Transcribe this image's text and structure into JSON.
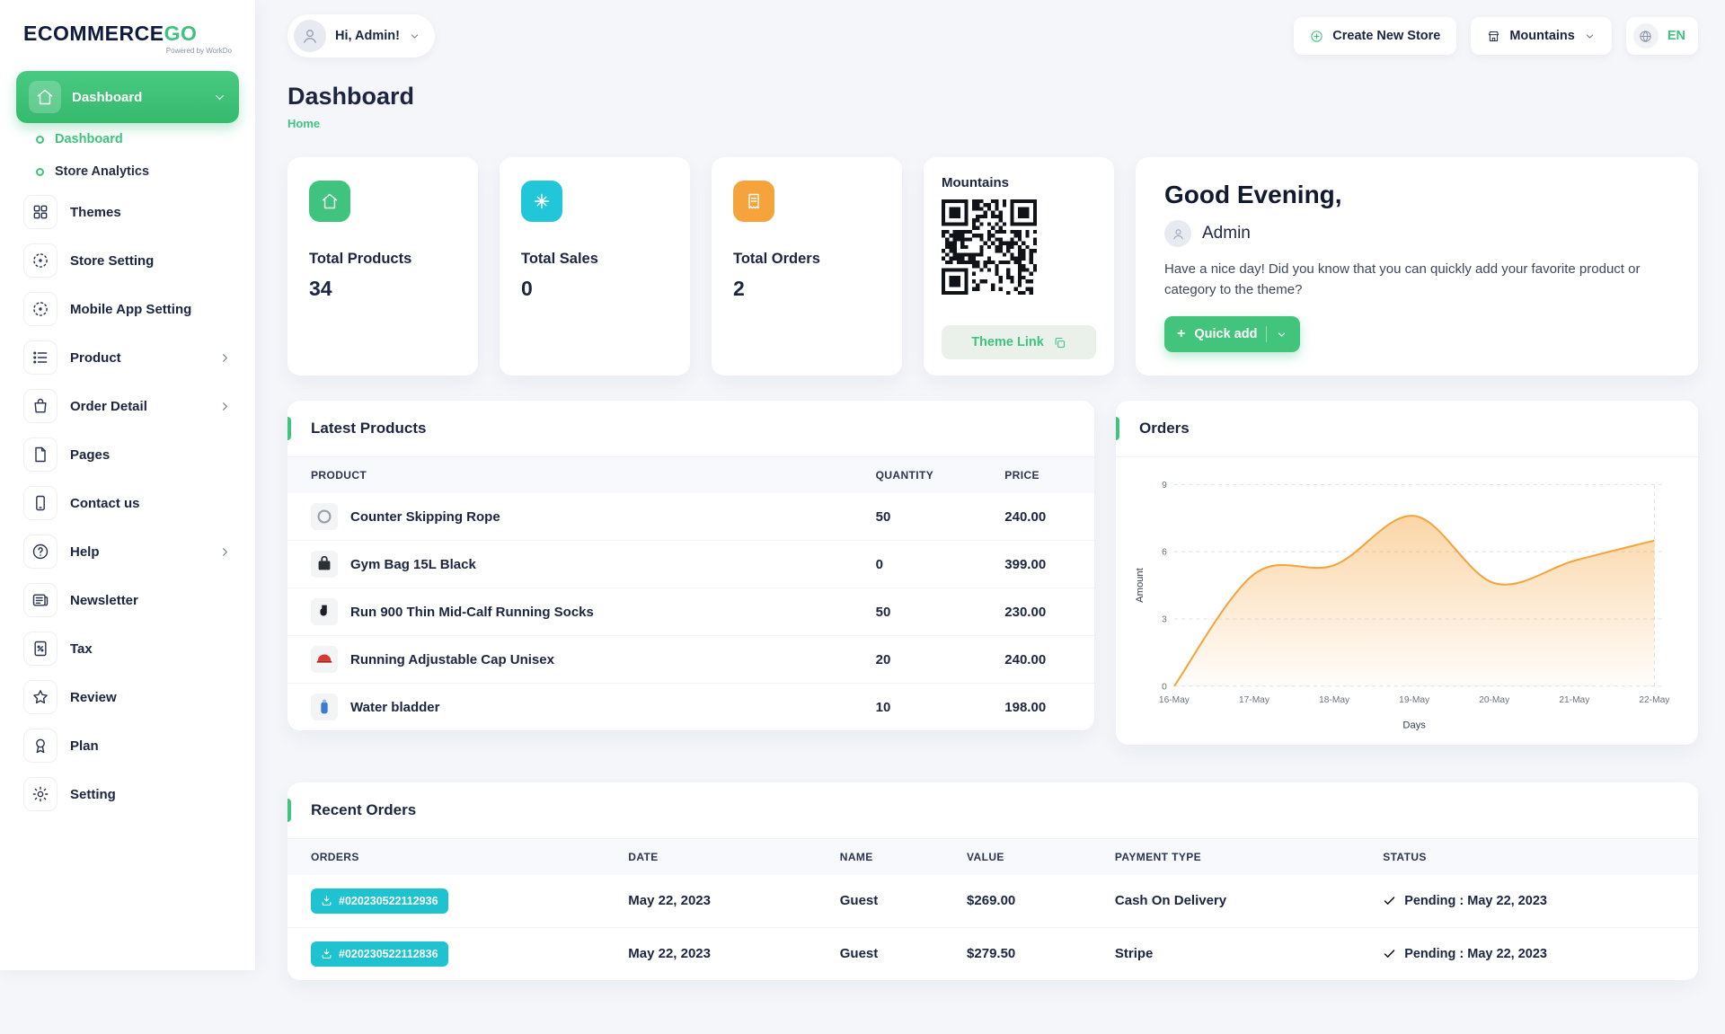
{
  "colors": {
    "accent_green": "#3fc37e",
    "teal": "#1fc3cf",
    "orange": "#f5a43c",
    "navy": "#0e1b3d"
  },
  "brand": {
    "logo_part1": "ECOMMERCE",
    "logo_part2": "GO",
    "tagline": "Powered by WorkDo"
  },
  "header": {
    "greeting": "Hi, Admin!",
    "create_store_label": "Create New Store",
    "create_store_icon": "plus-circle-icon",
    "store_selector_label": "Mountains",
    "store_selector_icon": "shop-icon",
    "language_label": "EN",
    "language_icon": "globe-icon"
  },
  "page": {
    "title": "Dashboard",
    "breadcrumb": "Home"
  },
  "sidebar": {
    "items": [
      {
        "label": "Dashboard",
        "icon": "home",
        "children": [
          {
            "label": "Dashboard"
          },
          {
            "label": "Store Analytics"
          }
        ]
      },
      {
        "label": "Themes",
        "icon": "grid"
      },
      {
        "label": "Store Setting",
        "icon": "dotted-circle"
      },
      {
        "label": "Mobile App Setting",
        "icon": "dotted-circle"
      },
      {
        "label": "Product",
        "icon": "list"
      },
      {
        "label": "Order Detail",
        "icon": "bag"
      },
      {
        "label": "Pages",
        "icon": "page"
      },
      {
        "label": "Contact us",
        "icon": "phone"
      },
      {
        "label": "Help",
        "icon": "help"
      },
      {
        "label": "Newsletter",
        "icon": "newspaper"
      },
      {
        "label": "Tax",
        "icon": "tax-document"
      },
      {
        "label": "Review",
        "icon": "star"
      },
      {
        "label": "Plan",
        "icon": "award"
      },
      {
        "label": "Setting",
        "icon": "gear"
      }
    ]
  },
  "stats": [
    {
      "label": "Total Products",
      "value": "34",
      "icon": "home",
      "color": "#3fc37e"
    },
    {
      "label": "Total Sales",
      "value": "0",
      "icon": "sparkle",
      "color": "#21c6d9"
    },
    {
      "label": "Total Orders",
      "value": "2",
      "icon": "receipt",
      "color": "#f5a43c"
    }
  ],
  "theme_card": {
    "title": "Mountains",
    "link_label": "Theme Link",
    "link_icon": "copy-icon",
    "qr_alt": "theme QR code"
  },
  "greeting_card": {
    "title": "Good Evening,",
    "name": "Admin",
    "message": "Have a nice day! Did you know that you can quickly add your favorite product or category to the theme?",
    "quick_add_label": "Quick add"
  },
  "latest_products": {
    "title": "Latest Products",
    "headers": [
      "PRODUCT",
      "QUANTITY",
      "PRICE"
    ],
    "rows": [
      {
        "name": "Counter Skipping Rope",
        "quantity": "50",
        "price": "240.00"
      },
      {
        "name": "Gym Bag 15L Black",
        "quantity": "0",
        "price": "399.00"
      },
      {
        "name": "Run 900 Thin Mid-Calf Running Socks",
        "quantity": "50",
        "price": "230.00"
      },
      {
        "name": "Running Adjustable Cap Unisex",
        "quantity": "20",
        "price": "240.00"
      },
      {
        "name": "Water bladder",
        "quantity": "10",
        "price": "198.00"
      }
    ]
  },
  "orders_card": {
    "title": "Orders"
  },
  "chart_data": {
    "type": "area",
    "title": "Orders",
    "x": [
      "16-May",
      "17-May",
      "18-May",
      "19-May",
      "20-May",
      "21-May",
      "22-May"
    ],
    "values": [
      0,
      5,
      5.4,
      7.6,
      4.6,
      5.6,
      6.5
    ],
    "xlabel": "Days",
    "ylabel": "Amount",
    "ylim": [
      0,
      9
    ],
    "yticks": [
      0,
      3,
      6,
      9
    ],
    "grid": "dashed-horizontal",
    "legend": "none",
    "line_color": "#f5a43c",
    "fill_from": "rgba(245,164,60,0.45)",
    "fill_to": "rgba(245,164,60,0.02)"
  },
  "recent_orders": {
    "title": "Recent Orders",
    "headers": [
      "ORDERS",
      "DATE",
      "NAME",
      "VALUE",
      "PAYMENT TYPE",
      "STATUS"
    ],
    "rows": [
      {
        "order_id": "#020230522112936",
        "date": "May 22, 2023",
        "name": "Guest",
        "value": "$269.00",
        "payment_type": "Cash On Delivery",
        "status": "Pending : May 22, 2023"
      },
      {
        "order_id": "#020230522112836",
        "date": "May 22, 2023",
        "name": "Guest",
        "value": "$279.50",
        "payment_type": "Stripe",
        "status": "Pending : May 22, 2023"
      }
    ]
  }
}
